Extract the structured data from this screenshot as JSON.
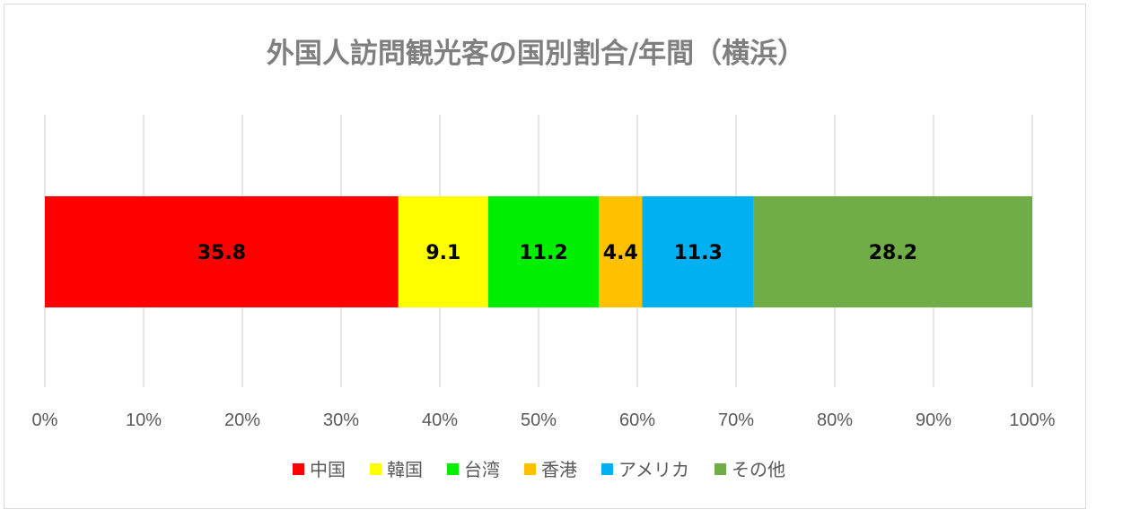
{
  "chart_data": {
    "type": "bar",
    "orientation": "horizontal",
    "stacked": "percent",
    "title": "外国人訪問観光客の国別割合/年間（横浜）",
    "categories": [
      ""
    ],
    "series": [
      {
        "name": "中国",
        "values": [
          35.8
        ],
        "color": "#ff0000"
      },
      {
        "name": "韓国",
        "values": [
          9.1
        ],
        "color": "#ffff00"
      },
      {
        "name": "台湾",
        "values": [
          11.2
        ],
        "color": "#00ee00"
      },
      {
        "name": "香港",
        "values": [
          4.4
        ],
        "color": "#ffc000"
      },
      {
        "name": "アメリカ",
        "values": [
          11.3
        ],
        "color": "#00b0f0"
      },
      {
        "name": "その他",
        "values": [
          28.2
        ],
        "color": "#70ad47"
      }
    ],
    "xlim": [
      0,
      100
    ],
    "xticks": [
      "0%",
      "10%",
      "20%",
      "30%",
      "40%",
      "50%",
      "60%",
      "70%",
      "80%",
      "90%",
      "100%"
    ],
    "grid": true,
    "legend": "bottom",
    "data_labels": true
  }
}
